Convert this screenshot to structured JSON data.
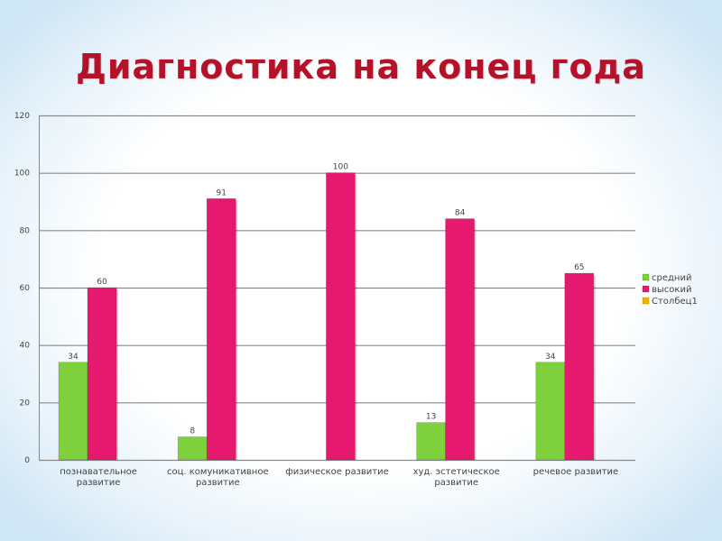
{
  "chart_data": {
    "type": "bar",
    "title": "Диагностика на конец года",
    "categories": [
      [
        "познавательное",
        "развитие"
      ],
      [
        "соц. комуникативное",
        "развитие"
      ],
      [
        "физическое развитие"
      ],
      [
        "худ. эстетическое",
        "развитие"
      ],
      [
        "речевое развитие"
      ]
    ],
    "series": [
      {
        "name": "средний",
        "color": "#7ed13c",
        "values": [
          34,
          8,
          null,
          13,
          34
        ]
      },
      {
        "name": "высокий",
        "color": "#e5196e",
        "values": [
          60,
          91,
          100,
          84,
          65
        ]
      },
      {
        "name": "Столбец1",
        "color": "#f0b400",
        "values": [
          null,
          null,
          null,
          null,
          null
        ]
      }
    ],
    "ylim": [
      0,
      120
    ],
    "yticks": [
      0,
      20,
      40,
      60,
      80,
      100,
      120
    ],
    "grid": true,
    "legend_position": "right"
  }
}
